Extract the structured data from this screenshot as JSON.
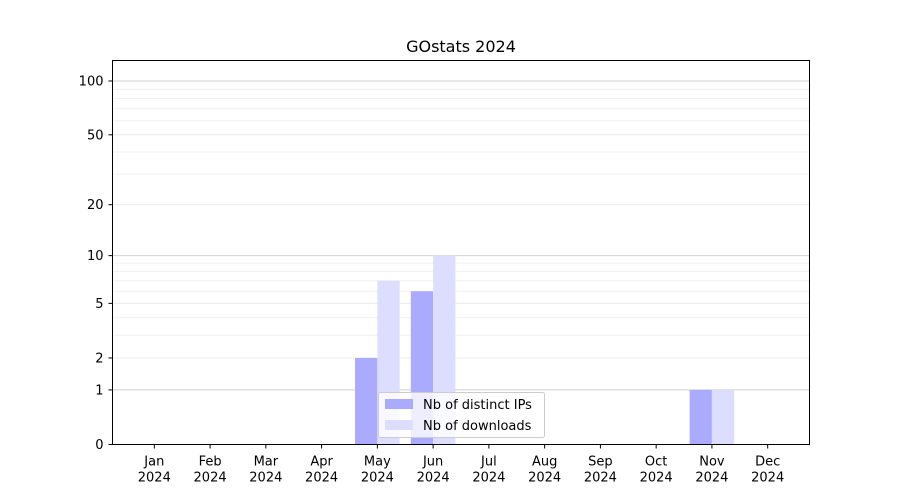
{
  "chart_data": {
    "type": "bar",
    "title": "GOstats 2024",
    "xlabel": "",
    "ylabel": "",
    "yscale": "symlog",
    "ylim": [
      0,
      130
    ],
    "categories": [
      [
        "Jan",
        "2024"
      ],
      [
        "Feb",
        "2024"
      ],
      [
        "Mar",
        "2024"
      ],
      [
        "Apr",
        "2024"
      ],
      [
        "May",
        "2024"
      ],
      [
        "Jun",
        "2024"
      ],
      [
        "Jul",
        "2024"
      ],
      [
        "Aug",
        "2024"
      ],
      [
        "Sep",
        "2024"
      ],
      [
        "Oct",
        "2024"
      ],
      [
        "Nov",
        "2024"
      ],
      [
        "Dec",
        "2024"
      ]
    ],
    "y_ticks": [
      "0",
      "1",
      "2",
      "5",
      "10",
      "20",
      "50",
      "100"
    ],
    "grid": "horizontal",
    "legend_position": "bottom-center",
    "series": [
      {
        "name": "Nb of distinct IPs",
        "color": "#aaaaff",
        "values": [
          0,
          0,
          0,
          0,
          2,
          6,
          0,
          0,
          0,
          0,
          1,
          0
        ]
      },
      {
        "name": "Nb of downloads",
        "color": "#ddddff",
        "values": [
          0,
          0,
          0,
          0,
          7,
          10,
          0,
          0,
          0,
          0,
          1,
          0
        ]
      }
    ]
  }
}
